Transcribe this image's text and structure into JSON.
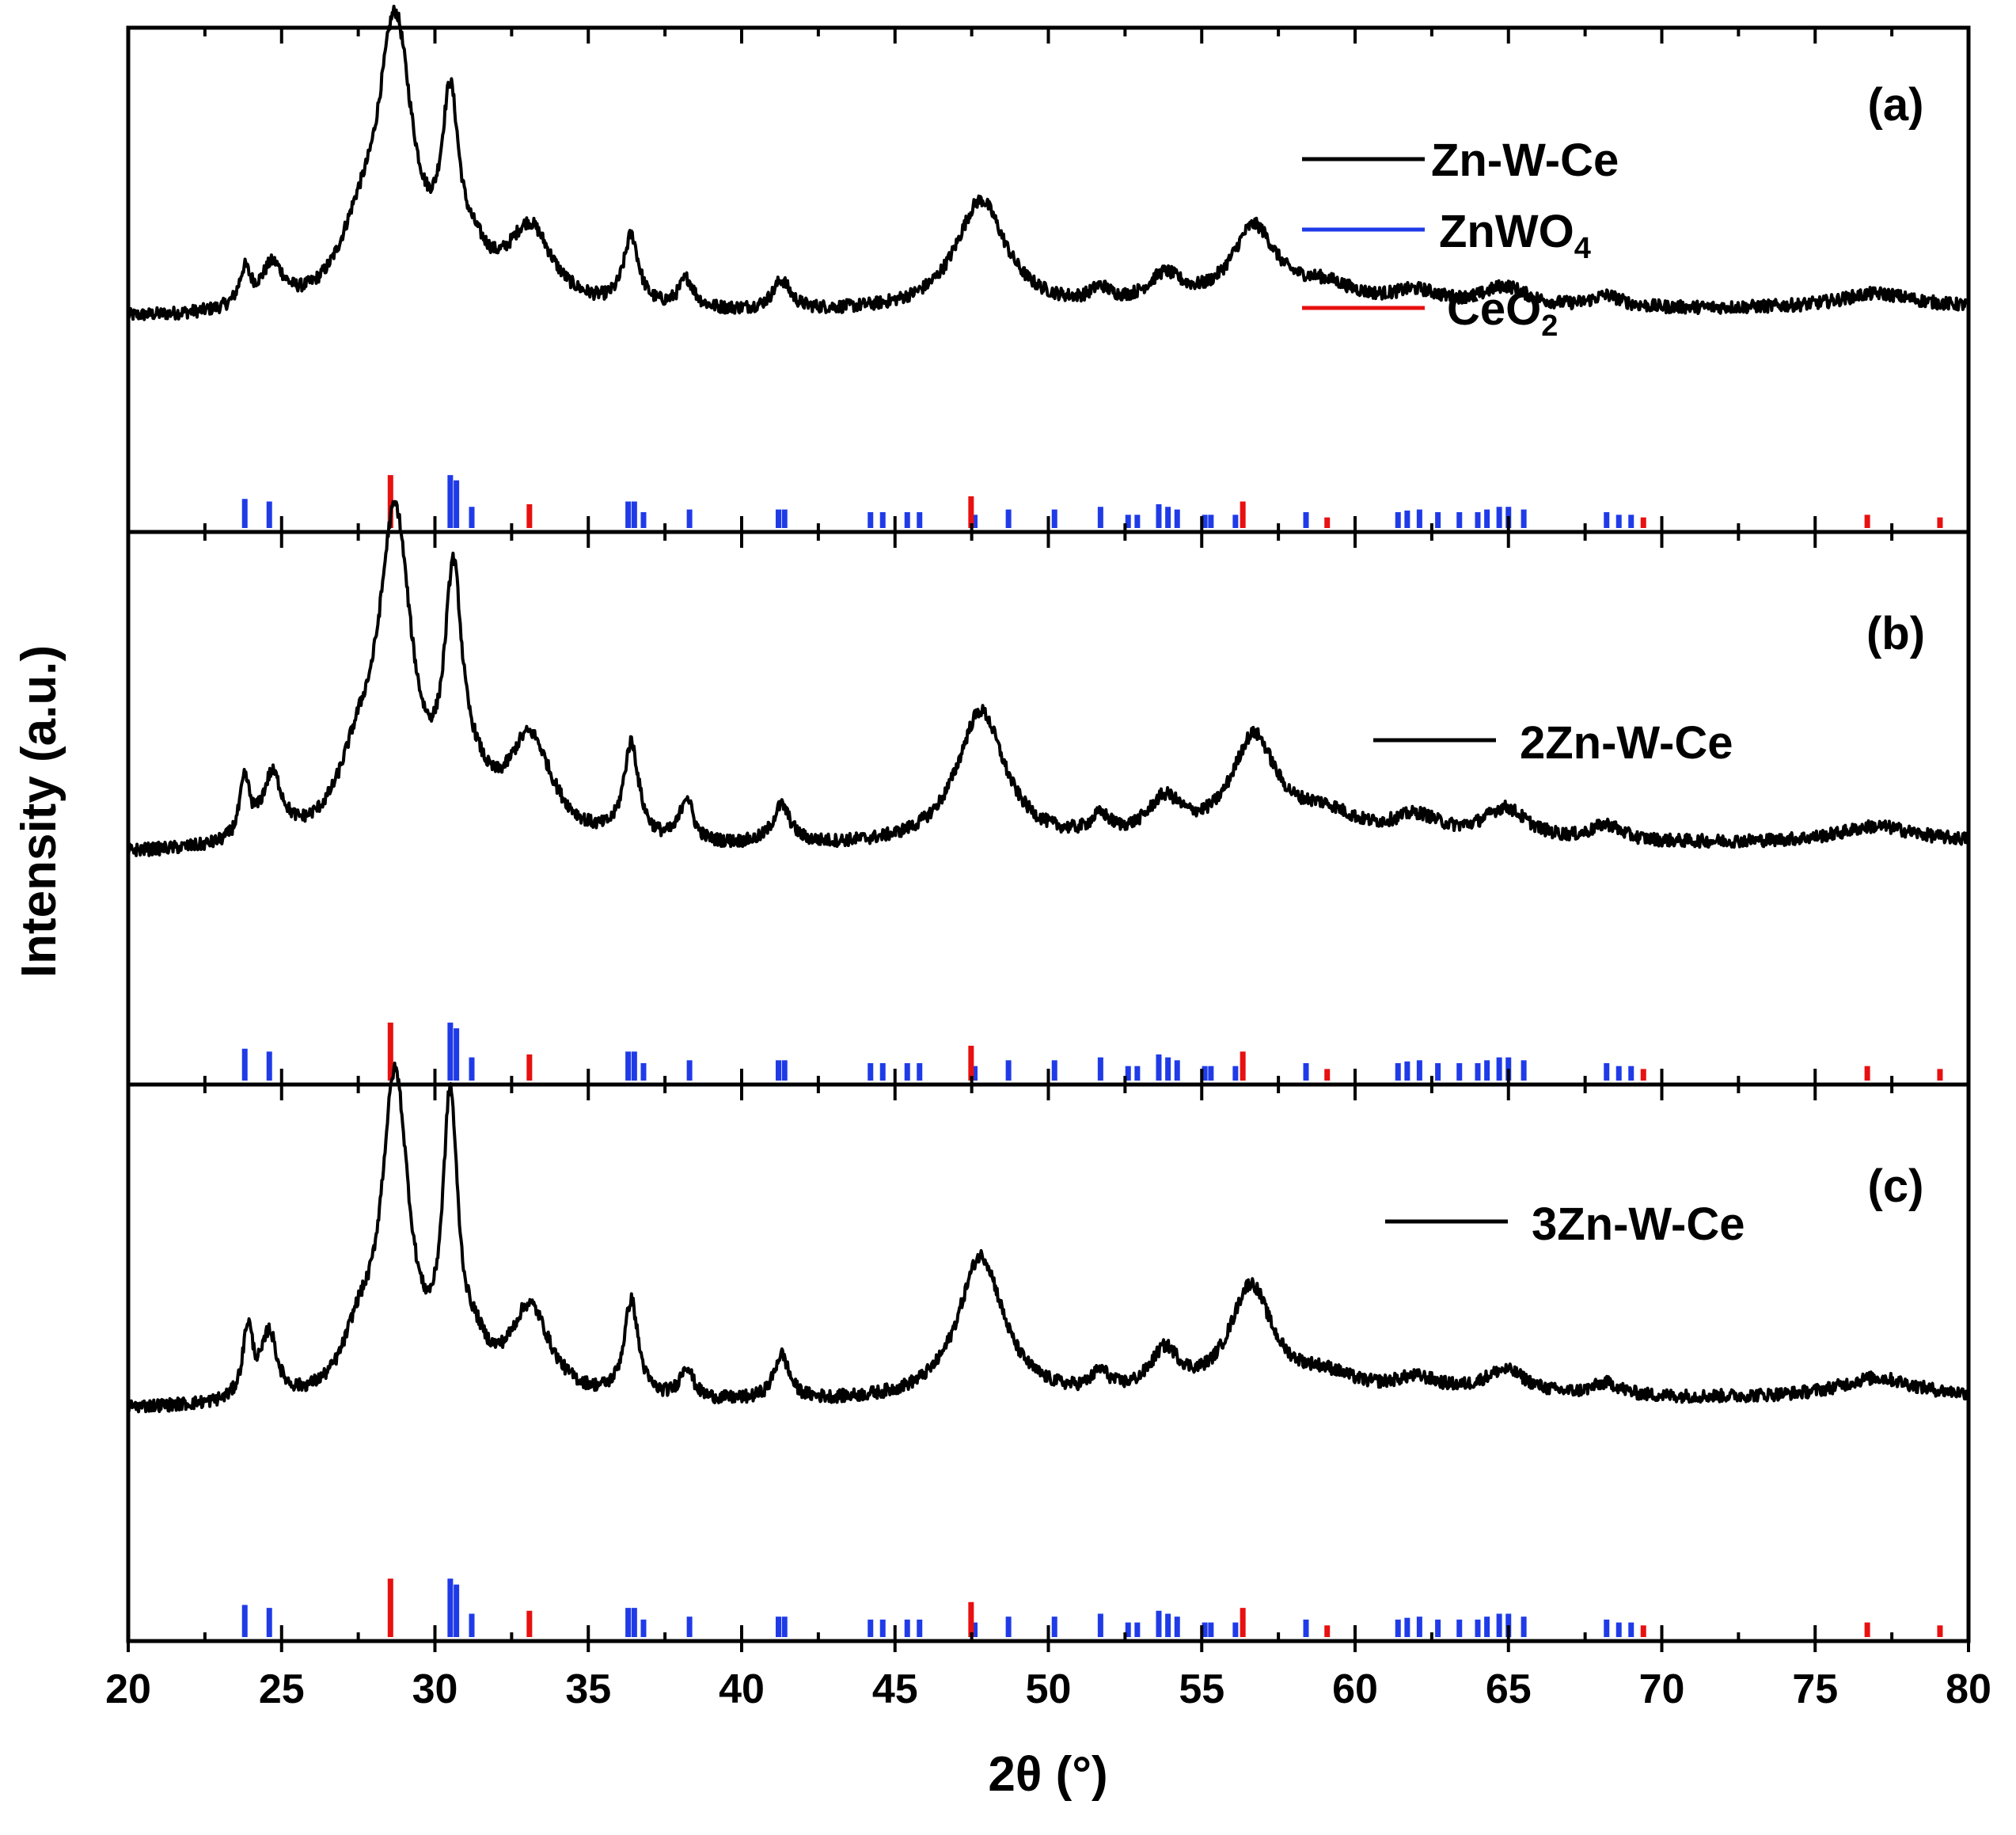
{
  "chart_data": {
    "type": "line",
    "xlabel": "2θ (°)",
    "ylabel": "Intensity (a.u.)",
    "xlim": [
      20,
      80
    ],
    "xticks": [
      20,
      25,
      30,
      35,
      40,
      45,
      50,
      55,
      60,
      65,
      70,
      75,
      80
    ],
    "xtick_labels": [
      "20",
      "25",
      "30",
      "35",
      "40",
      "45",
      "50",
      "55",
      "60",
      "65",
      "70",
      "75",
      "80"
    ],
    "legend": [
      {
        "label": "Zn-W-Ce",
        "color": "#000000"
      },
      {
        "label_main": "ZnWO",
        "label_sub": "4",
        "color": "#1f3be8"
      },
      {
        "label_main": "CeO",
        "label_sub": "2",
        "color": "#e81010"
      }
    ],
    "reference_patterns": {
      "ZnWO4": {
        "color": "#1f3be8",
        "peaks": [
          [
            23.8,
            0.55
          ],
          [
            24.6,
            0.5
          ],
          [
            30.5,
            1.0
          ],
          [
            30.7,
            0.9
          ],
          [
            31.2,
            0.4
          ],
          [
            36.3,
            0.5
          ],
          [
            36.5,
            0.5
          ],
          [
            36.8,
            0.3
          ],
          [
            38.3,
            0.35
          ],
          [
            41.2,
            0.35
          ],
          [
            41.4,
            0.35
          ],
          [
            44.2,
            0.3
          ],
          [
            44.6,
            0.3
          ],
          [
            45.4,
            0.3
          ],
          [
            45.8,
            0.3
          ],
          [
            47.6,
            0.25
          ],
          [
            48.7,
            0.35
          ],
          [
            50.2,
            0.35
          ],
          [
            51.7,
            0.4
          ],
          [
            52.6,
            0.25
          ],
          [
            52.9,
            0.25
          ],
          [
            53.6,
            0.45
          ],
          [
            53.9,
            0.4
          ],
          [
            54.2,
            0.35
          ],
          [
            55.1,
            0.25
          ],
          [
            55.3,
            0.25
          ],
          [
            56.1,
            0.25
          ],
          [
            58.4,
            0.3
          ],
          [
            61.4,
            0.3
          ],
          [
            61.7,
            0.33
          ],
          [
            62.1,
            0.35
          ],
          [
            62.7,
            0.3
          ],
          [
            63.4,
            0.3
          ],
          [
            64.0,
            0.3
          ],
          [
            64.3,
            0.35
          ],
          [
            64.7,
            0.4
          ],
          [
            65.0,
            0.4
          ],
          [
            65.5,
            0.35
          ],
          [
            68.2,
            0.3
          ],
          [
            68.6,
            0.25
          ],
          [
            69.0,
            0.25
          ]
        ]
      },
      "CeO2": {
        "color": "#e81010",
        "peaks": [
          [
            28.55,
            1.0
          ],
          [
            33.08,
            0.45
          ],
          [
            47.48,
            0.6
          ],
          [
            56.34,
            0.5
          ],
          [
            59.09,
            0.2
          ],
          [
            69.4,
            0.2
          ],
          [
            76.7,
            0.25
          ],
          [
            79.07,
            0.2
          ]
        ]
      }
    },
    "series": [
      {
        "panel": "(a)",
        "name": "Zn-W-Ce",
        "legend_label": "Zn-W-Ce",
        "baseline": 0.03,
        "noise": 0.022,
        "slope": 0.0006,
        "peaks": [
          [
            23.8,
            0.12,
            0.22
          ],
          [
            24.7,
            0.14,
            0.45
          ],
          [
            27.5,
            0.18,
            0.8
          ],
          [
            28.7,
            0.95,
            0.7
          ],
          [
            30.5,
            0.6,
            0.35
          ],
          [
            31.3,
            0.1,
            0.6
          ],
          [
            33.1,
            0.27,
            0.9
          ],
          [
            36.4,
            0.24,
            0.3
          ],
          [
            38.2,
            0.1,
            0.3
          ],
          [
            41.3,
            0.1,
            0.35
          ],
          [
            47.8,
            0.38,
            1.0
          ],
          [
            51.7,
            0.05,
            0.4
          ],
          [
            53.8,
            0.1,
            0.7
          ],
          [
            56.7,
            0.27,
            0.9
          ],
          [
            59.0,
            0.07,
            1.3
          ],
          [
            62.0,
            0.05,
            1.0
          ],
          [
            64.9,
            0.07,
            0.9
          ],
          [
            68.2,
            0.04,
            0.6
          ],
          [
            77.0,
            0.05,
            1.5
          ]
        ]
      },
      {
        "panel": "(b)",
        "name": "2Zn-W-Ce",
        "legend_label": "2Zn-W-Ce",
        "baseline": 0.02,
        "noise": 0.02,
        "slope": 0.0006,
        "peaks": [
          [
            23.8,
            0.18,
            0.2
          ],
          [
            24.7,
            0.2,
            0.4
          ],
          [
            27.5,
            0.2,
            0.8
          ],
          [
            28.7,
            0.98,
            0.65
          ],
          [
            30.6,
            0.72,
            0.35
          ],
          [
            31.3,
            0.1,
            0.6
          ],
          [
            33.1,
            0.32,
            0.9
          ],
          [
            36.4,
            0.3,
            0.3
          ],
          [
            38.2,
            0.14,
            0.25
          ],
          [
            41.3,
            0.12,
            0.35
          ],
          [
            47.8,
            0.42,
            0.95
          ],
          [
            51.7,
            0.06,
            0.4
          ],
          [
            53.8,
            0.12,
            0.7
          ],
          [
            56.7,
            0.32,
            0.9
          ],
          [
            59.0,
            0.08,
            1.3
          ],
          [
            62.0,
            0.07,
            1.0
          ],
          [
            64.9,
            0.1,
            0.9
          ],
          [
            68.2,
            0.05,
            0.6
          ],
          [
            77.0,
            0.05,
            1.5
          ]
        ]
      },
      {
        "panel": "(c)",
        "name": "3Zn-W-Ce",
        "legend_label": "3Zn-W-Ce",
        "baseline": 0.02,
        "noise": 0.02,
        "slope": 0.0006,
        "peaks": [
          [
            23.9,
            0.22,
            0.2
          ],
          [
            24.6,
            0.2,
            0.3
          ],
          [
            27.5,
            0.15,
            0.6
          ],
          [
            28.7,
            0.98,
            0.55
          ],
          [
            30.5,
            0.85,
            0.3
          ],
          [
            31.3,
            0.1,
            0.5
          ],
          [
            33.1,
            0.28,
            0.8
          ],
          [
            36.4,
            0.3,
            0.28
          ],
          [
            38.2,
            0.1,
            0.25
          ],
          [
            41.3,
            0.14,
            0.3
          ],
          [
            47.8,
            0.45,
            0.9
          ],
          [
            51.7,
            0.06,
            0.35
          ],
          [
            53.8,
            0.13,
            0.6
          ],
          [
            56.6,
            0.34,
            0.85
          ],
          [
            59.0,
            0.06,
            1.3
          ],
          [
            62.0,
            0.05,
            1.0
          ],
          [
            64.9,
            0.08,
            0.9
          ],
          [
            68.2,
            0.04,
            0.6
          ],
          [
            77.0,
            0.06,
            1.5
          ]
        ]
      }
    ]
  }
}
